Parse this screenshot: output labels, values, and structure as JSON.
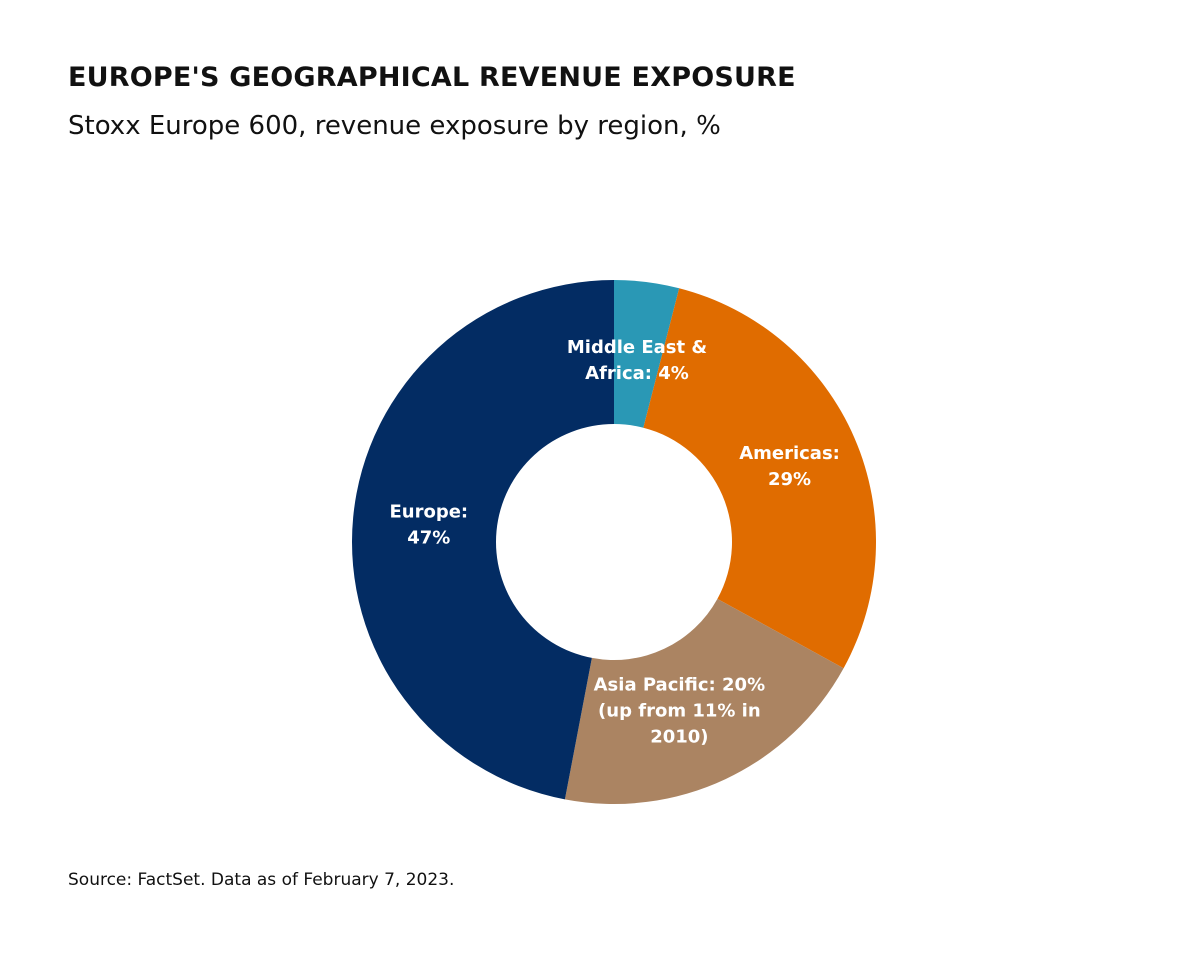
{
  "title": "EUROPE'S GEOGRAPHICAL REVENUE EXPOSURE",
  "subtitle": "Stoxx Europe 600, revenue exposure by region, %",
  "source": "Source: FactSet. Data as of February 7, 2023.",
  "chart_data": {
    "type": "pie",
    "variant": "donut",
    "title": "EUROPE'S GEOGRAPHICAL REVENUE EXPOSURE",
    "subtitle": "Stoxx Europe 600, revenue exposure by region, %",
    "categories": [
      "Middle East & Africa",
      "Americas",
      "Asia Pacific",
      "Europe"
    ],
    "values": [
      4,
      29,
      20,
      47
    ],
    "colors": [
      "#2a98b5",
      "#e06c00",
      "#ab8462",
      "#032c63"
    ],
    "labels": [
      [
        "Middle East &",
        "Africa: 4%"
      ],
      [
        "Americas:",
        "29%"
      ],
      [
        "Asia Pacific: 20%",
        "(up from 11% in",
        "2010)"
      ],
      [
        "Europe:",
        "47%"
      ]
    ],
    "start": "12 o'clock",
    "direction": "clockwise"
  }
}
